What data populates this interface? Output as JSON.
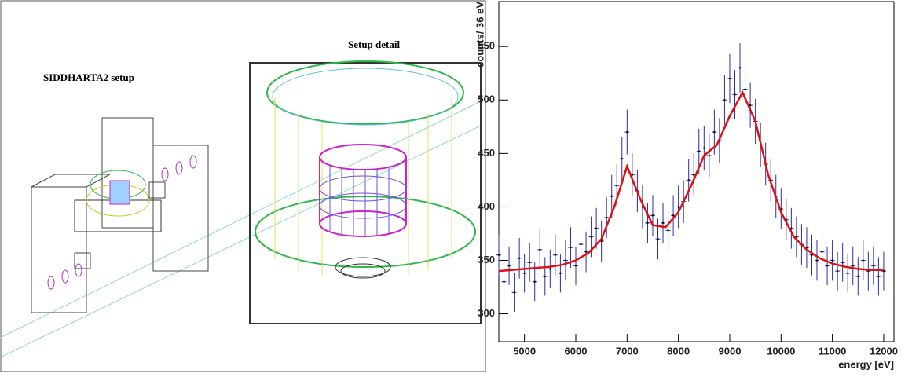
{
  "figure": {
    "setup_label": "SIDDHARTA2 setup",
    "detail_label": "Setup detail"
  },
  "chart_data": {
    "type": "errorbar",
    "xlabel": "energy [eV]",
    "ylabel": "counts/ 36 eV",
    "xlim": [
      4500,
      12200
    ],
    "xticks": [
      5000,
      6000,
      7000,
      8000,
      9000,
      10000,
      11000,
      12000
    ],
    "ylim": [
      274,
      592
    ],
    "yticks": [
      300,
      350,
      400,
      450,
      500,
      550
    ],
    "series": [
      {
        "type": "errorbar",
        "color": "#2b2ba8",
        "x": [
          4500,
          4600,
          4700,
          4800,
          4900,
          5000,
          5100,
          5200,
          5300,
          5400,
          5500,
          5600,
          5700,
          5800,
          5900,
          6000,
          6100,
          6200,
          6300,
          6400,
          6500,
          6600,
          6700,
          6800,
          6900,
          7000,
          7100,
          7200,
          7300,
          7400,
          7500,
          7600,
          7700,
          7800,
          7900,
          8000,
          8100,
          8200,
          8300,
          8400,
          8500,
          8600,
          8700,
          8800,
          8900,
          9000,
          9100,
          9200,
          9300,
          9400,
          9500,
          9600,
          9700,
          9800,
          9900,
          10000,
          10100,
          10200,
          10300,
          10400,
          10500,
          10600,
          10700,
          10800,
          10900,
          11000,
          11100,
          11200,
          11300,
          11400,
          11500,
          11600,
          11700,
          11800,
          11900,
          12000
        ],
        "values": [
          355,
          330,
          345,
          320,
          352,
          338,
          348,
          330,
          360,
          335,
          342,
          355,
          338,
          350,
          362,
          345,
          365,
          358,
          372,
          380,
          368,
          390,
          410,
          420,
          445,
          470,
          430,
          415,
          400,
          385,
          392,
          370,
          385,
          378,
          392,
          400,
          405,
          425,
          430,
          452,
          455,
          448,
          470,
          462,
          500,
          520,
          505,
          530,
          510,
          495,
          480,
          458,
          440,
          425,
          410,
          398,
          388,
          380,
          372,
          365,
          362,
          355,
          350,
          358,
          345,
          350,
          340,
          348,
          338,
          345,
          335,
          350,
          340,
          345,
          335,
          340
        ],
        "errors": [
          19,
          18,
          18,
          18,
          19,
          18,
          18,
          18,
          19,
          18,
          18,
          19,
          18,
          19,
          19,
          18,
          19,
          19,
          19,
          19,
          19,
          19,
          20,
          20,
          20,
          21,
          20,
          20,
          20,
          19,
          19,
          19,
          19,
          19,
          19,
          20,
          20,
          20,
          20,
          21,
          21,
          20,
          21,
          21,
          23,
          23,
          23,
          23,
          23,
          21,
          21,
          21,
          20,
          20,
          20,
          19,
          19,
          19,
          19,
          19,
          19,
          19,
          19,
          19,
          18,
          19,
          18,
          18,
          18,
          18,
          18,
          19,
          18,
          18,
          18,
          18
        ]
      },
      {
        "type": "line",
        "color": "#e01010",
        "x": [
          4500,
          4750,
          5000,
          5250,
          5500,
          5750,
          6000,
          6250,
          6500,
          6750,
          7000,
          7250,
          7500,
          7750,
          8000,
          8250,
          8500,
          8750,
          9000,
          9250,
          9500,
          9750,
          10000,
          10250,
          10500,
          10750,
          11000,
          11250,
          11500,
          11750,
          12000
        ],
        "values": [
          340,
          341,
          342,
          343,
          344,
          346,
          350,
          357,
          370,
          400,
          438,
          408,
          383,
          381,
          395,
          420,
          448,
          458,
          485,
          507,
          480,
          430,
          395,
          372,
          360,
          352,
          347,
          344,
          342,
          341,
          341
        ]
      }
    ]
  }
}
